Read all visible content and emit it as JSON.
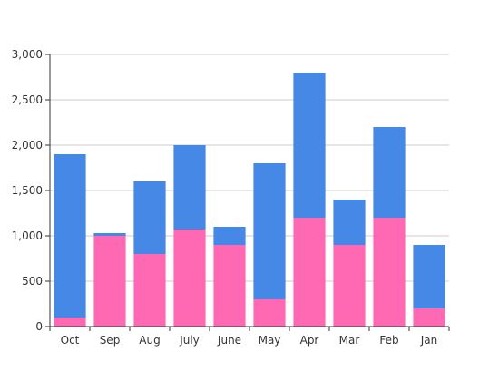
{
  "chart_data": {
    "type": "bar",
    "stacked": true,
    "categories": [
      "Oct",
      "Sep",
      "Aug",
      "July",
      "June",
      "May",
      "Apr",
      "Mar",
      "Feb",
      "Jan"
    ],
    "series": [
      {
        "color": "#ff69b4",
        "values": [
          100,
          1000,
          800,
          1070,
          900,
          300,
          1200,
          900,
          1200,
          200
        ]
      },
      {
        "color": "#4588e6",
        "values": [
          1800,
          30,
          800,
          930,
          200,
          1500,
          1600,
          500,
          1000,
          700
        ]
      }
    ],
    "yticks": [
      "0",
      "500",
      "1,000",
      "1,500",
      "2,000",
      "2,500",
      "3,000"
    ],
    "ylim": [
      0,
      3000
    ],
    "grid": true,
    "legend": "none"
  }
}
